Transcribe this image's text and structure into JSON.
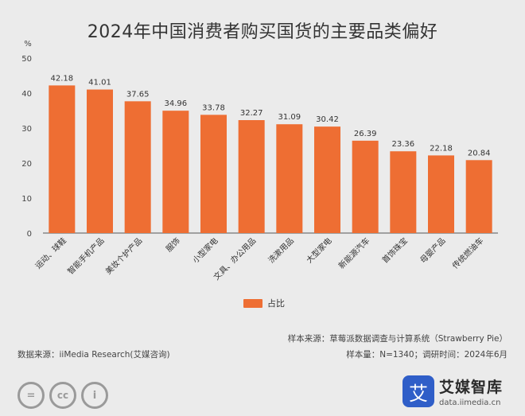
{
  "chart_data": {
    "type": "bar",
    "title": "2024年中国消费者购买国货的主要品类偏好",
    "ylabel": "%",
    "ylim": [
      0,
      50
    ],
    "yticks": [
      0,
      10,
      20,
      30,
      40,
      50
    ],
    "grid": false,
    "legend_position": "bottom",
    "categories": [
      "运动、球鞋",
      "智能手机产品",
      "美妆个护产品",
      "服饰",
      "小型家电",
      "文具、办公用品",
      "洗漱用品",
      "大型家电",
      "新能源汽车",
      "首饰珠宝",
      "母婴产品",
      "传统燃油车"
    ],
    "series": [
      {
        "name": "占比",
        "values": [
          42.18,
          41.01,
          37.65,
          34.96,
          33.78,
          32.27,
          31.09,
          30.42,
          26.39,
          23.36,
          22.18,
          20.84
        ],
        "labels": [
          "42.18",
          "41.01",
          "37.65",
          "34.96",
          "33.78",
          "32.27",
          "31.09",
          "30.42",
          "26.39",
          "23.36",
          "22.18",
          "20.84"
        ],
        "color": "#ee6e33"
      }
    ]
  },
  "notes": {
    "source_line": "样本来源：草莓派数据调查与计算系统（Strawberry Pie）",
    "data_source": "数据来源：iiMedia Research(艾媒咨询)",
    "sample_line": "样本量：N=1340；调研时间：2024年6月"
  },
  "footer": {
    "cc_icons": [
      "equals-icon",
      "cc-icon",
      "person-icon"
    ],
    "cc_labels": [
      "=",
      "cc",
      "i"
    ],
    "brand_logo_glyph": "艾",
    "brand_name": "艾媒智库",
    "brand_url": "data.iimedia.cn"
  }
}
